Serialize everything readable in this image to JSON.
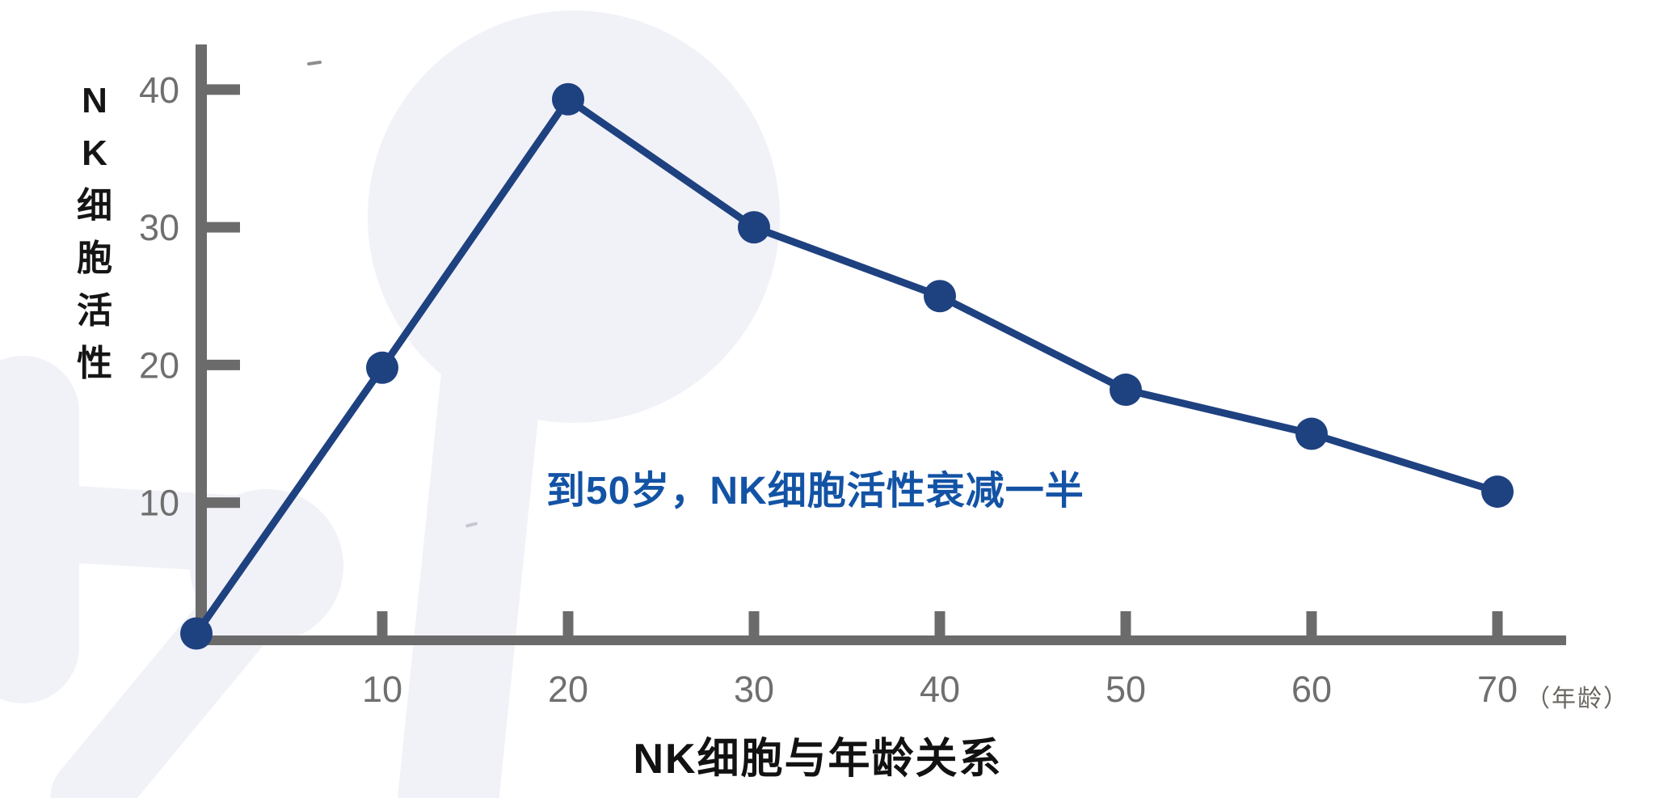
{
  "page": {
    "background": "#ffffff"
  },
  "colors": {
    "series": "#1e4180",
    "axis": "#6b6b6b",
    "tick_label": "#6f6f6f",
    "annotation": "#1353a5",
    "title_text": "#121212",
    "y_axis_label_text": "#151515",
    "unit_label": "#6b6660",
    "blob": "#f1f1f8"
  },
  "chart_data": {
    "type": "line",
    "title": "NK细胞与年龄关系",
    "y_axis_label": "NK细胞活性",
    "y_axis_label_vertical": "N\nK\n细\n胞\n活\n性",
    "x_axis_unit": "（年龄）",
    "x": [
      0,
      10,
      20,
      30,
      40,
      50,
      60,
      70
    ],
    "y": [
      0.5,
      19.8,
      39.3,
      30,
      25,
      18.2,
      15,
      10.8
    ],
    "x_ticks": [
      10,
      20,
      30,
      40,
      50,
      60,
      70
    ],
    "y_ticks": [
      10,
      20,
      30,
      40
    ],
    "xlim": [
      0,
      73.7
    ],
    "ylim": [
      0,
      43.3
    ],
    "grid": false,
    "legend": "none",
    "marker": "circle",
    "series_color": "#1e4180",
    "annotation": {
      "text": "到50岁，NK细胞活性衰减一半",
      "color": "#1353a5"
    }
  }
}
